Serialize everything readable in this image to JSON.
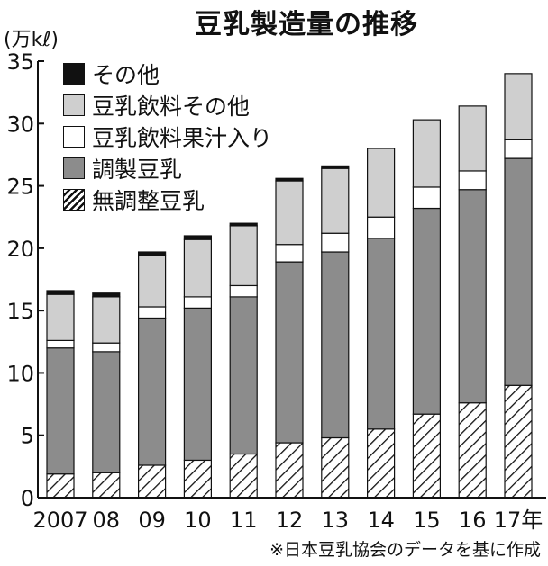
{
  "title": "豆乳製造量の推移",
  "unit": "(万kℓ)",
  "source": "※日本豆乳協会のデータを基に作成",
  "colors": {
    "other": "#111111",
    "beverage_other": "#cfcfcf",
    "juice": "#ffffff",
    "prepared": "#8c8c8c",
    "unadjusted_hatch": "#111111"
  },
  "chart_data": {
    "type": "bar",
    "stacked": true,
    "title": "豆乳製造量の推移",
    "ylabel": "(万kℓ)",
    "xlabel": "",
    "ylim": [
      0,
      35
    ],
    "yticks": [
      0,
      5,
      10,
      15,
      20,
      25,
      30,
      35
    ],
    "grid": false,
    "legend_position": "top-left",
    "categories": [
      "2007",
      "08",
      "09",
      "10",
      "11",
      "12",
      "13",
      "14",
      "15",
      "16",
      "17年"
    ],
    "series": [
      {
        "name": "無調整豆乳",
        "color": "hatch",
        "values": [
          1.9,
          2.0,
          2.6,
          3.0,
          3.5,
          4.4,
          4.8,
          5.5,
          6.7,
          7.6,
          9.0
        ]
      },
      {
        "name": "調製豆乳",
        "color": "#8c8c8c",
        "values": [
          10.1,
          9.7,
          11.8,
          12.2,
          12.6,
          14.5,
          14.9,
          15.3,
          16.5,
          17.1,
          18.2
        ]
      },
      {
        "name": "豆乳飲料果汁入り",
        "color": "#ffffff",
        "values": [
          0.6,
          0.7,
          0.9,
          0.9,
          0.9,
          1.4,
          1.5,
          1.7,
          1.7,
          1.5,
          1.5
        ]
      },
      {
        "name": "豆乳飲料その他",
        "color": "#cfcfcf",
        "values": [
          3.7,
          3.7,
          4.1,
          4.6,
          4.8,
          5.1,
          5.2,
          5.5,
          5.4,
          5.2,
          5.3
        ]
      },
      {
        "name": "その他",
        "color": "#111111",
        "values": [
          0.3,
          0.3,
          0.3,
          0.3,
          0.2,
          0.2,
          0.2,
          0.0,
          0.0,
          0.0,
          0.0
        ]
      }
    ]
  }
}
